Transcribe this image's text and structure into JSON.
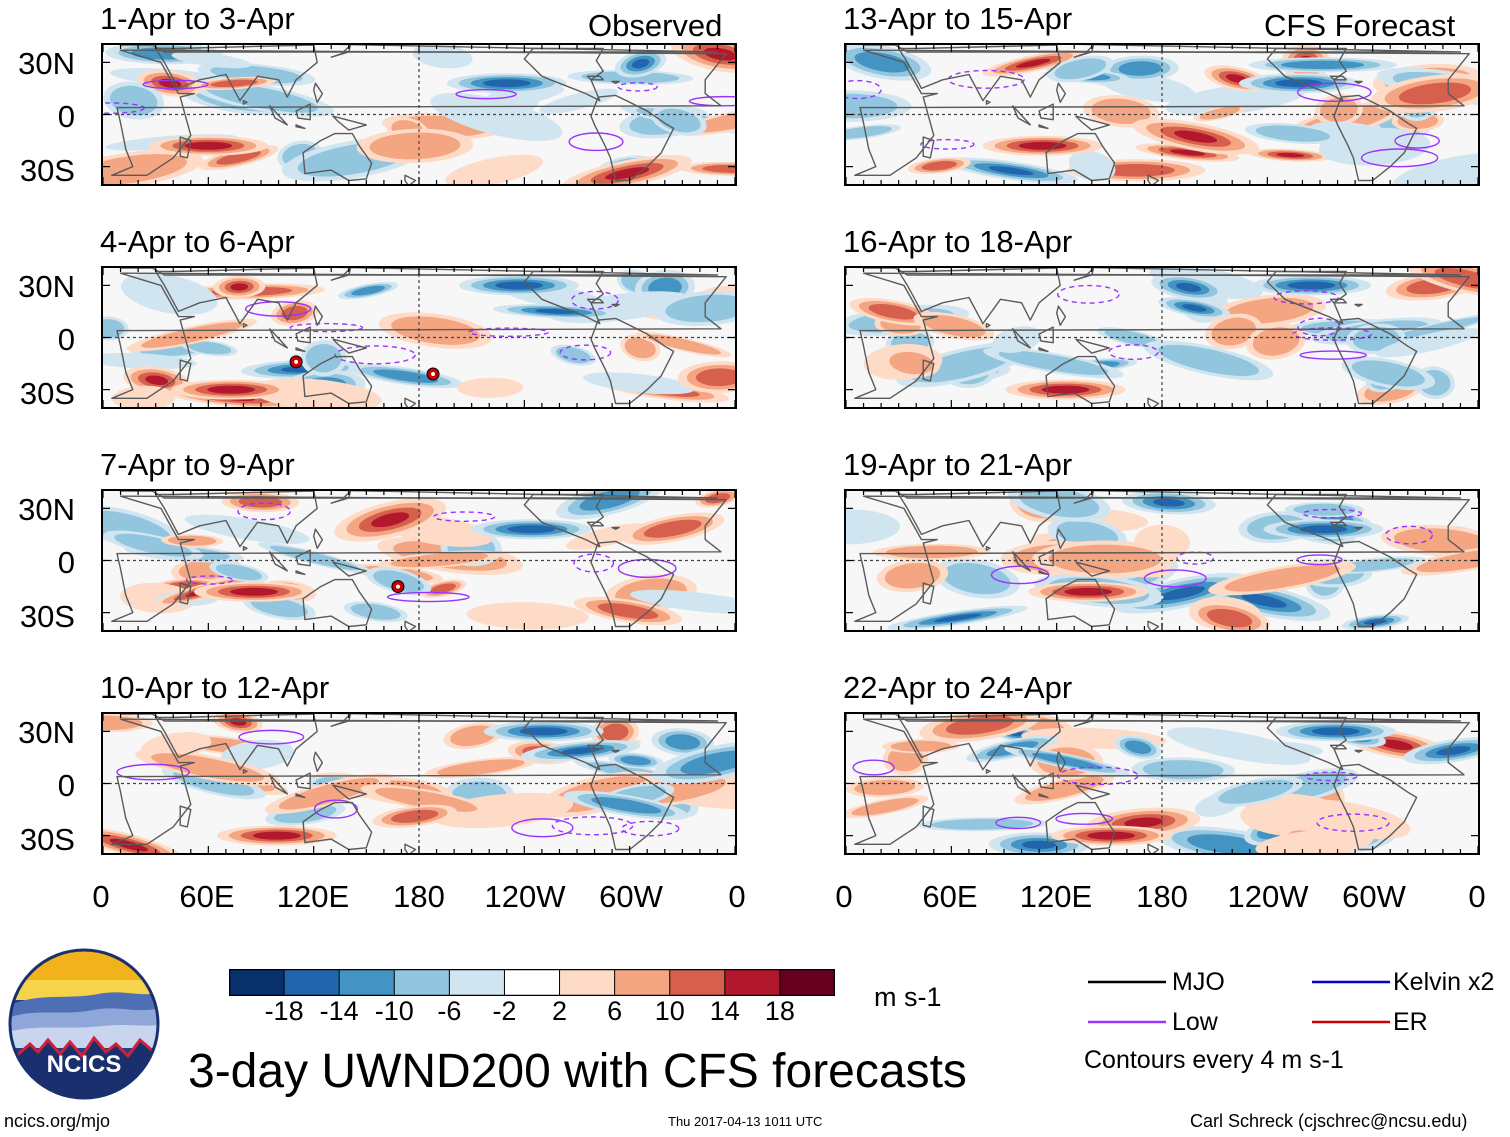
{
  "colors": {
    "scale": [
      "#08306b",
      "#2166ac",
      "#4393c3",
      "#92c5de",
      "#d1e5f0",
      "#ffffff",
      "#fddbc7",
      "#f4a582",
      "#d6604d",
      "#b2182b",
      "#67001f"
    ],
    "mjo": "#000000",
    "low": "#9933ff",
    "kelvin": "#0000cc",
    "er": "#cc0000",
    "coast": "#5a5a5a"
  },
  "chart_data": {
    "type": "heatmap",
    "title": "3-day UWND200 with CFS forecasts",
    "variable": "UWND200",
    "units": "m s-1",
    "observed_label": "Observed",
    "forecast_label": "CFS Forecast",
    "lat_ticks": [
      "30N",
      "0",
      "30S"
    ],
    "lon_ticks": [
      "0",
      "60E",
      "120E",
      "180",
      "120W",
      "60W",
      "0"
    ],
    "colorbar_ticks": [
      "-18",
      "-14",
      "-10",
      "-6",
      "-2",
      "2",
      "6",
      "10",
      "14",
      "18"
    ],
    "contour_note": "Contours every 4 m s-1",
    "panels": [
      {
        "title": "1-Apr to 3-Apr",
        "source": "Observed"
      },
      {
        "title": "4-Apr to 6-Apr",
        "source": "Observed"
      },
      {
        "title": "7-Apr to 9-Apr",
        "source": "Observed"
      },
      {
        "title": "10-Apr to 12-Apr",
        "source": "Observed"
      },
      {
        "title": "13-Apr to 15-Apr",
        "source": "CFS Forecast"
      },
      {
        "title": "16-Apr to 18-Apr",
        "source": "CFS Forecast"
      },
      {
        "title": "19-Apr to 21-Apr",
        "source": "CFS Forecast"
      },
      {
        "title": "22-Apr to 24-Apr",
        "source": "CFS Forecast"
      }
    ],
    "legend": [
      {
        "label": "MJO",
        "color_key": "mjo"
      },
      {
        "label": "Kelvin x2",
        "color_key": "kelvin"
      },
      {
        "label": "Low",
        "color_key": "low"
      },
      {
        "label": "ER",
        "color_key": "er"
      }
    ],
    "cyclone_markers": [
      {
        "panel": 1,
        "lon": 110,
        "lat": -14
      },
      {
        "panel": 1,
        "lon": 188,
        "lat": -21
      },
      {
        "panel": 2,
        "lon": 168,
        "lat": -15
      }
    ]
  },
  "logo": {
    "text": "NCICS"
  },
  "footer": {
    "url": "ncics.org/mjo",
    "timestamp": "Thu 2017-04-13 1011 UTC",
    "author": "Carl Schreck (cjschrec@ncsu.edu)"
  }
}
